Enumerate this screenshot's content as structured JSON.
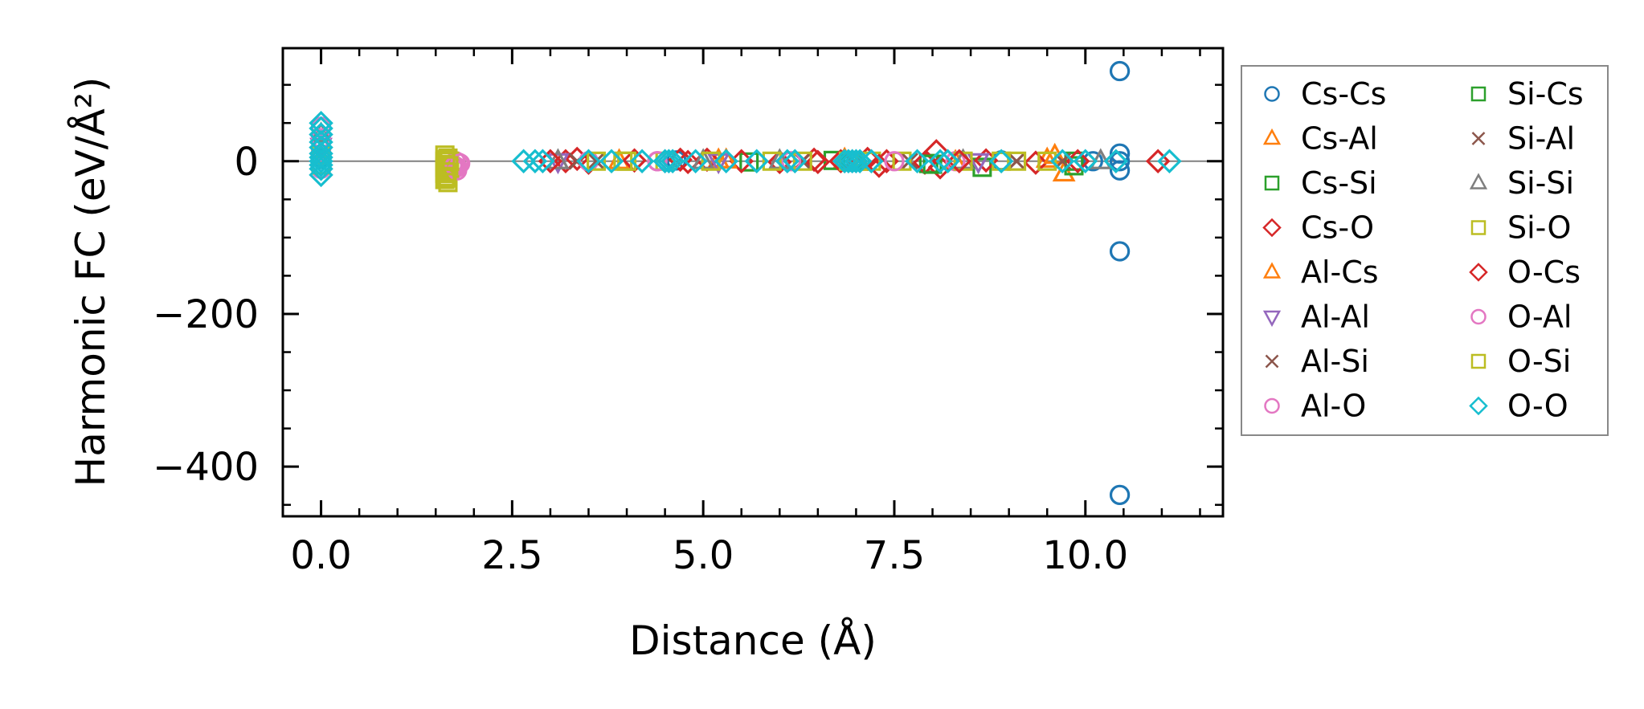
{
  "chart_data": {
    "type": "scatter",
    "title": "",
    "xlabel": "Distance (Å)",
    "ylabel": "Harmonic FC (eV/Å²)",
    "xlim": [
      -0.5,
      11.8
    ],
    "ylim": [
      -465,
      148
    ],
    "xticks": [
      0.0,
      2.5,
      5.0,
      7.5,
      10.0
    ],
    "xtick_labels": [
      "0.0",
      "2.5",
      "5.0",
      "7.5",
      "10.0"
    ],
    "yticks": [
      0,
      -200,
      -400
    ],
    "ytick_labels": [
      "0",
      "−200",
      "−400"
    ],
    "reference_line_y": 0,
    "grid": false,
    "legend_placement": "outside-right",
    "series": [
      {
        "name": "Cs-Cs",
        "marker": "circle",
        "color": "#1f77b4",
        "points": [
          [
            10.45,
            118
          ],
          [
            10.45,
            -118
          ],
          [
            10.45,
            -437
          ],
          [
            10.45,
            10
          ],
          [
            10.45,
            -12
          ],
          [
            10.45,
            0
          ],
          [
            0.0,
            3
          ],
          [
            4.65,
            1
          ],
          [
            6.95,
            -1
          ],
          [
            8.9,
            1
          ],
          [
            10.1,
            0
          ]
        ]
      },
      {
        "name": "Cs-Al",
        "marker": "triangle-up",
        "color": "#ff7f0e",
        "points": [
          [
            9.72,
            -16
          ],
          [
            6.85,
            2
          ],
          [
            5.2,
            1
          ],
          [
            8.3,
            -1
          ],
          [
            9.5,
            2
          ],
          [
            3.9,
            0
          ]
        ]
      },
      {
        "name": "Cs-Si",
        "marker": "square",
        "color": "#2ca02c",
        "points": [
          [
            8.65,
            -8
          ],
          [
            9.85,
            0
          ],
          [
            7.95,
            -3
          ],
          [
            6.7,
            1
          ],
          [
            5.6,
            -1
          ]
        ]
      },
      {
        "name": "Cs-O",
        "marker": "diamond",
        "color": "#d62728",
        "points": [
          [
            3.2,
            0
          ],
          [
            3.35,
            3
          ],
          [
            3.5,
            -2
          ],
          [
            4.1,
            1
          ],
          [
            4.8,
            -1
          ],
          [
            5.05,
            2
          ],
          [
            5.5,
            0
          ],
          [
            6.0,
            -1
          ],
          [
            6.45,
            2
          ],
          [
            6.8,
            0
          ],
          [
            7.15,
            3
          ],
          [
            7.4,
            0
          ],
          [
            7.9,
            -2
          ],
          [
            8.05,
            13
          ],
          [
            8.1,
            -8
          ],
          [
            8.7,
            1
          ],
          [
            9.35,
            -2
          ],
          [
            10.95,
            0
          ]
        ]
      },
      {
        "name": "Al-Cs",
        "marker": "triangle-up",
        "color": "#ff7f0e",
        "points": [
          [
            9.6,
            7
          ],
          [
            7.05,
            -2
          ],
          [
            5.3,
            1
          ]
        ]
      },
      {
        "name": "Al-Al",
        "marker": "triangle-down",
        "color": "#9467bd",
        "points": [
          [
            0.0,
            20
          ],
          [
            3.1,
            0
          ],
          [
            5.2,
            0
          ],
          [
            8.6,
            0
          ]
        ]
      },
      {
        "name": "Al-Si",
        "marker": "x",
        "color": "#8c564b",
        "points": [
          [
            3.35,
            0
          ],
          [
            6.3,
            0
          ],
          [
            9.1,
            0
          ]
        ]
      },
      {
        "name": "Al-O",
        "marker": "circle",
        "color": "#e377c2",
        "points": [
          [
            0.0,
            45
          ],
          [
            0.0,
            15
          ],
          [
            0.0,
            -10
          ],
          [
            1.72,
            -5
          ],
          [
            1.74,
            -10
          ],
          [
            1.76,
            0
          ],
          [
            1.78,
            -8
          ],
          [
            1.8,
            -2
          ],
          [
            3.5,
            0
          ],
          [
            4.4,
            0
          ],
          [
            6.15,
            0
          ],
          [
            8.3,
            0
          ]
        ]
      },
      {
        "name": "Si-Cs",
        "marker": "square",
        "color": "#2ca02c",
        "points": [
          [
            8.0,
            -4
          ],
          [
            9.85,
            -6
          ],
          [
            6.95,
            0
          ]
        ]
      },
      {
        "name": "Si-Al",
        "marker": "x",
        "color": "#8c564b",
        "points": [
          [
            3.6,
            0
          ],
          [
            7.7,
            0
          ],
          [
            9.7,
            0
          ]
        ]
      },
      {
        "name": "Si-Si",
        "marker": "triangle-up",
        "color": "#7f7f7f",
        "points": [
          [
            0.0,
            35
          ],
          [
            3.1,
            0
          ],
          [
            5.0,
            0
          ],
          [
            6.0,
            0
          ],
          [
            8.4,
            0
          ],
          [
            10.2,
            0
          ]
        ]
      },
      {
        "name": "Si-O",
        "marker": "square",
        "color": "#bcbd22",
        "points": [
          [
            0.0,
            8
          ],
          [
            1.62,
            8
          ],
          [
            1.62,
            0
          ],
          [
            1.62,
            -8
          ],
          [
            1.62,
            -16
          ],
          [
            1.62,
            -24
          ],
          [
            1.64,
            -4
          ],
          [
            1.64,
            -12
          ],
          [
            1.66,
            4
          ],
          [
            1.66,
            -20
          ],
          [
            1.66,
            -28
          ],
          [
            1.68,
            0
          ],
          [
            1.68,
            -10
          ],
          [
            3.6,
            0
          ],
          [
            4.0,
            0
          ],
          [
            4.5,
            0
          ],
          [
            5.1,
            0
          ],
          [
            5.9,
            0
          ],
          [
            6.9,
            0
          ],
          [
            7.2,
            0
          ],
          [
            7.6,
            0
          ],
          [
            8.4,
            0
          ],
          [
            8.9,
            0
          ],
          [
            9.5,
            0
          ]
        ]
      },
      {
        "name": "O-Cs",
        "marker": "diamond",
        "color": "#d62728",
        "points": [
          [
            3.0,
            0
          ],
          [
            4.7,
            2
          ],
          [
            6.5,
            -1
          ],
          [
            7.3,
            -6
          ],
          [
            8.35,
            0
          ],
          [
            9.9,
            0
          ]
        ]
      },
      {
        "name": "O-Al",
        "marker": "circle",
        "color": "#e377c2",
        "points": [
          [
            0.0,
            30
          ],
          [
            1.75,
            -6
          ],
          [
            1.78,
            -12
          ],
          [
            1.82,
            -3
          ],
          [
            4.4,
            0
          ],
          [
            7.5,
            0
          ]
        ]
      },
      {
        "name": "O-Si",
        "marker": "square",
        "color": "#bcbd22",
        "points": [
          [
            0.0,
            -5
          ],
          [
            1.63,
            2
          ],
          [
            1.63,
            -14
          ],
          [
            1.65,
            -22
          ],
          [
            1.67,
            -6
          ],
          [
            3.95,
            0
          ],
          [
            6.3,
            0
          ],
          [
            9.1,
            0
          ]
        ]
      },
      {
        "name": "O-O",
        "marker": "diamond",
        "color": "#17becf",
        "points": [
          [
            0.0,
            50
          ],
          [
            0.0,
            43
          ],
          [
            0.0,
            35
          ],
          [
            0.0,
            25
          ],
          [
            0.0,
            18
          ],
          [
            0.0,
            10
          ],
          [
            0.0,
            5
          ],
          [
            0.0,
            0
          ],
          [
            0.0,
            -5
          ],
          [
            0.0,
            -10
          ],
          [
            0.0,
            -18
          ],
          [
            2.65,
            0
          ],
          [
            2.8,
            0
          ],
          [
            2.9,
            0
          ],
          [
            3.5,
            0
          ],
          [
            3.8,
            0
          ],
          [
            4.2,
            0
          ],
          [
            4.5,
            0
          ],
          [
            4.55,
            0
          ],
          [
            4.6,
            0
          ],
          [
            4.9,
            0
          ],
          [
            5.3,
            0
          ],
          [
            5.7,
            0
          ],
          [
            6.1,
            0
          ],
          [
            6.2,
            0
          ],
          [
            6.85,
            0
          ],
          [
            6.9,
            0
          ],
          [
            6.95,
            0
          ],
          [
            7.0,
            0
          ],
          [
            7.05,
            0
          ],
          [
            7.2,
            0
          ],
          [
            7.8,
            0
          ],
          [
            8.1,
            0
          ],
          [
            8.2,
            0
          ],
          [
            8.9,
            0
          ],
          [
            9.7,
            0
          ],
          [
            10.0,
            0
          ],
          [
            10.4,
            0
          ],
          [
            11.1,
            0
          ]
        ]
      }
    ]
  }
}
